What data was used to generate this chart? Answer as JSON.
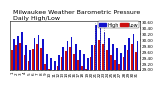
{
  "title": "Milwaukee Weather Barometric Pressure",
  "subtitle": "Daily High/Low",
  "legend_high": "High",
  "legend_low": "Low",
  "high_color": "#1111cc",
  "low_color": "#cc1111",
  "bar_width": 0.42,
  "ylim": [
    29.0,
    30.65
  ],
  "yticks": [
    29.0,
    29.2,
    29.4,
    29.6,
    29.8,
    30.0,
    30.2,
    30.4,
    30.6
  ],
  "background_color": "#ffffff",
  "highs": [
    30.05,
    30.15,
    30.28,
    29.82,
    29.68,
    30.08,
    30.18,
    30.05,
    29.52,
    29.4,
    29.28,
    29.5,
    29.78,
    29.98,
    30.12,
    29.88,
    29.65,
    29.52,
    29.38,
    29.82,
    30.52,
    30.42,
    30.28,
    30.08,
    29.88,
    29.72,
    29.58,
    29.82,
    30.08,
    30.22,
    29.98
  ],
  "lows": [
    29.68,
    29.82,
    29.92,
    29.48,
    29.28,
    29.7,
    29.88,
    29.72,
    29.18,
    29.02,
    28.92,
    29.12,
    29.42,
    29.62,
    29.78,
    29.52,
    29.32,
    29.12,
    29.02,
    29.42,
    29.82,
    30.02,
    29.88,
    29.68,
    29.48,
    29.32,
    29.18,
    29.42,
    29.68,
    29.88,
    29.6
  ],
  "xlabels": [
    "1",
    "2",
    "3",
    "4",
    "5",
    "6",
    "7",
    "8",
    "9",
    "10",
    "11",
    "12",
    "13",
    "14",
    "15",
    "16",
    "17",
    "18",
    "19",
    "20",
    "21",
    "22",
    "23",
    "24",
    "25",
    "26",
    "27",
    "28",
    "29",
    "30",
    "31"
  ],
  "dotted_indices": [
    20,
    21,
    22
  ],
  "title_fontsize": 4.5,
  "tick_fontsize": 3.0,
  "legend_fontsize": 3.5
}
